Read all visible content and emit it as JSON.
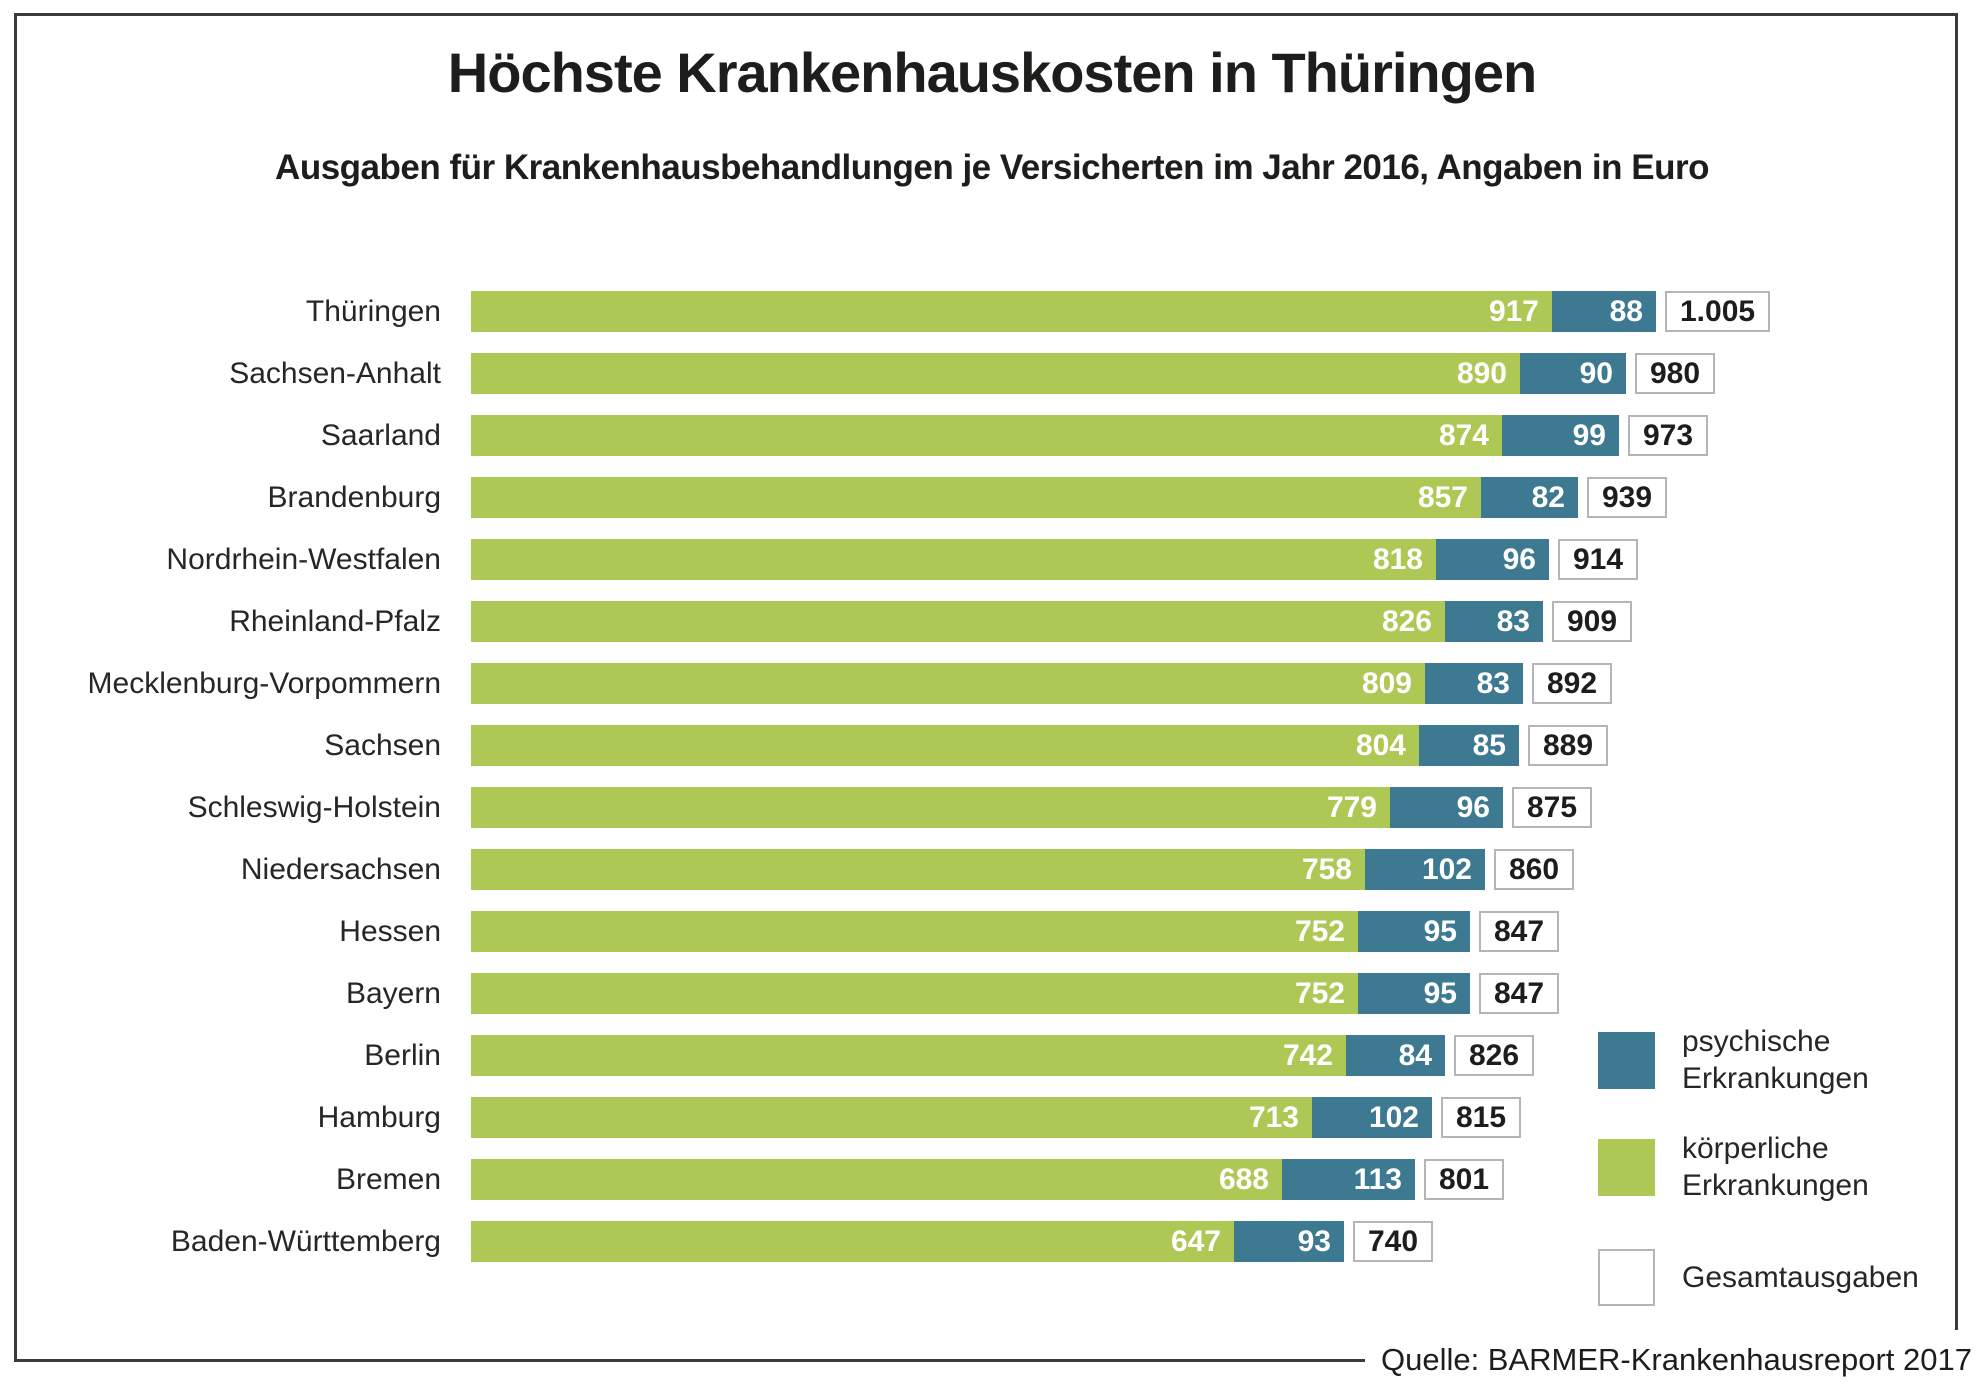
{
  "title": "Höchste Krankenhauskosten in Thüringen",
  "subtitle": "Ausgaben für Krankenhausbehandlungen je Versicherten im Jahr 2016, Angaben in Euro",
  "source": "Quelle: BARMER-Krankenhausreport 2017",
  "colors": {
    "koerperlich_green": "#aec855",
    "psychisch_teal": "#3d7a91",
    "total_box_border": "#b5b5b5",
    "frame_border": "#3b3b3b",
    "text": "#1d1d1b"
  },
  "legend": {
    "items": [
      {
        "swatch": "psychisch_teal",
        "outline": false,
        "lines": [
          "psychische",
          "Erkrankungen"
        ]
      },
      {
        "swatch": "koerperlich_green",
        "outline": false,
        "lines": [
          "körperliche",
          "Erkrankungen"
        ]
      },
      {
        "swatch": "outline",
        "outline": true,
        "lines": [
          "Gesamtausgaben"
        ]
      }
    ]
  },
  "chart_data": {
    "type": "bar",
    "orientation": "horizontal",
    "stacked": true,
    "grid": false,
    "units": "Euro",
    "title": "Höchste Krankenhauskosten in Thüringen",
    "subtitle": "Ausgaben für Krankenhausbehandlungen je Versicherten im Jahr 2016, Angaben in Euro",
    "xlabel": "",
    "ylabel": "",
    "xlim": [
      0,
      1005
    ],
    "legend_position": "bottom-right",
    "categories": [
      "Thüringen",
      "Sachsen-Anhalt",
      "Saarland",
      "Brandenburg",
      "Nordrhein-Westfalen",
      "Rheinland-Pfalz",
      "Mecklenburg-Vorpommern",
      "Sachsen",
      "Schleswig-Holstein",
      "Niedersachsen",
      "Hessen",
      "Bayern",
      "Berlin",
      "Hamburg",
      "Bremen",
      "Baden-Württemberg"
    ],
    "series": [
      {
        "name": "körperliche Erkrankungen",
        "color": "#aec855",
        "values": [
          917,
          890,
          874,
          857,
          818,
          826,
          809,
          804,
          779,
          758,
          752,
          752,
          742,
          713,
          688,
          647
        ],
        "values_display": [
          "917",
          "890",
          "874",
          "857",
          "818",
          "826",
          "809",
          "804",
          "779",
          "758",
          "752",
          "752",
          "742",
          "713",
          "688",
          "647"
        ]
      },
      {
        "name": "psychische Erkrankungen",
        "color": "#3d7a91",
        "values": [
          88,
          90,
          99,
          82,
          96,
          83,
          83,
          85,
          96,
          102,
          95,
          95,
          84,
          102,
          113,
          93
        ],
        "values_display": [
          "88",
          "90",
          "99",
          "82",
          "96",
          "83",
          "83",
          "85",
          "96",
          "102",
          "95",
          "95",
          "84",
          "102",
          "113",
          "93"
        ]
      }
    ],
    "totals": [
      1005,
      980,
      973,
      939,
      914,
      909,
      892,
      889,
      875,
      860,
      847,
      847,
      826,
      815,
      801,
      740
    ],
    "totals_display": [
      "1.005",
      "980",
      "973",
      "939",
      "914",
      "909",
      "892",
      "889",
      "875",
      "860",
      "847",
      "847",
      "826",
      "815",
      "801",
      "740"
    ]
  }
}
